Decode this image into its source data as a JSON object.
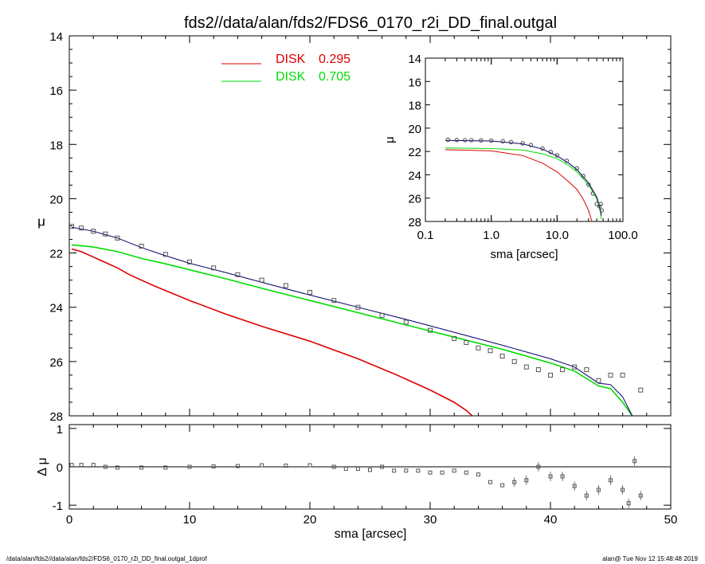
{
  "title": "fds2//data/alan/fds2/FDS6_0170_r2i_DD_final.outgal",
  "footer": {
    "left": "/data/alan/fds2//data/alan/fds2/FDS6_0170_r2i_DD_final.outgal_1dprof",
    "right": "alan@  Tue Nov 12 15:48:48 2019"
  },
  "colors": {
    "disk1": "#dd0000",
    "disk2": "#00dd00",
    "model": "#000066",
    "data": "#555555"
  },
  "legend": [
    {
      "name": "DISK",
      "value": "0.295",
      "color": "#dd0000"
    },
    {
      "name": "DISK",
      "value": "0.705",
      "color": "#00dd00"
    }
  ],
  "chart_data": [
    {
      "type": "line",
      "role": "main",
      "xlabel": "",
      "ylabel": "μ",
      "xlim": [
        0,
        50
      ],
      "ylim": [
        28,
        14
      ],
      "yticks": [
        "14",
        "16",
        "18",
        "20",
        "22",
        "24",
        "26",
        "28"
      ],
      "series": [
        {
          "name": "DISK 0.295",
          "color": "#dd0000",
          "points": [
            [
              0.2,
              21.85
            ],
            [
              1,
              21.95
            ],
            [
              2,
              22.15
            ],
            [
              3,
              22.35
            ],
            [
              4,
              22.55
            ],
            [
              5,
              22.8
            ],
            [
              7,
              23.2
            ],
            [
              10,
              23.75
            ],
            [
              13,
              24.25
            ],
            [
              16,
              24.7
            ],
            [
              20,
              25.25
            ],
            [
              24,
              25.9
            ],
            [
              27,
              26.45
            ],
            [
              30,
              27.05
            ],
            [
              32,
              27.5
            ],
            [
              33,
              27.8
            ],
            [
              33.5,
              28.0
            ]
          ]
        },
        {
          "name": "DISK 0.705",
          "color": "#00dd00",
          "points": [
            [
              0.2,
              21.7
            ],
            [
              2,
              21.78
            ],
            [
              4,
              21.95
            ],
            [
              6,
              22.2
            ],
            [
              8,
              22.4
            ],
            [
              10,
              22.62
            ],
            [
              13,
              22.95
            ],
            [
              16,
              23.3
            ],
            [
              20,
              23.75
            ],
            [
              24,
              24.2
            ],
            [
              28,
              24.65
            ],
            [
              32,
              25.1
            ],
            [
              36,
              25.55
            ],
            [
              40,
              26.05
            ],
            [
              42,
              26.35
            ],
            [
              44,
              26.9
            ],
            [
              45,
              27.0
            ],
            [
              46,
              27.5
            ],
            [
              46.8,
              28.0
            ]
          ]
        },
        {
          "name": "model",
          "color": "#000066",
          "points": [
            [
              0.2,
              21.05
            ],
            [
              2,
              21.2
            ],
            [
              4,
              21.45
            ],
            [
              6,
              21.8
            ],
            [
              8,
              22.1
            ],
            [
              10,
              22.38
            ],
            [
              13,
              22.72
            ],
            [
              16,
              23.08
            ],
            [
              20,
              23.55
            ],
            [
              24,
              24.0
            ],
            [
              28,
              24.45
            ],
            [
              32,
              24.92
            ],
            [
              36,
              25.4
            ],
            [
              40,
              25.9
            ],
            [
              42,
              26.2
            ],
            [
              44,
              26.8
            ],
            [
              45,
              26.85
            ],
            [
              46,
              27.3
            ],
            [
              46.8,
              28.0
            ]
          ]
        }
      ],
      "data_points": [
        [
          0.2,
          21.02
        ],
        [
          1,
          21.08
        ],
        [
          2,
          21.2
        ],
        [
          3,
          21.3
        ],
        [
          4,
          21.45
        ],
        [
          6,
          21.75
        ],
        [
          8,
          22.05
        ],
        [
          10,
          22.33
        ],
        [
          12,
          22.55
        ],
        [
          14,
          22.8
        ],
        [
          16,
          23.0
        ],
        [
          18,
          23.2
        ],
        [
          20,
          23.45
        ],
        [
          22,
          23.75
        ],
        [
          24,
          24.0
        ],
        [
          26,
          24.3
        ],
        [
          28,
          24.55
        ],
        [
          30,
          24.85
        ],
        [
          32,
          25.15
        ],
        [
          33,
          25.3
        ],
        [
          34,
          25.5
        ],
        [
          35,
          25.6
        ],
        [
          36,
          25.8
        ],
        [
          37,
          26.0
        ],
        [
          38,
          26.2
        ],
        [
          39,
          26.3
        ],
        [
          40,
          26.5
        ],
        [
          41,
          26.3
        ],
        [
          42,
          26.2
        ],
        [
          43,
          26.3
        ],
        [
          44,
          26.7
        ],
        [
          45,
          26.5
        ],
        [
          46,
          26.5
        ],
        [
          47.5,
          27.05
        ]
      ]
    },
    {
      "type": "scatter",
      "role": "residual",
      "xlabel": "sma [arcsec]",
      "ylabel": "Δ μ",
      "xlim": [
        0,
        50
      ],
      "ylim": [
        -1.1,
        1.1
      ],
      "xticks": [
        "0",
        "10",
        "20",
        "30",
        "40",
        "50"
      ],
      "yticks": [
        "1",
        "0",
        "-1"
      ],
      "points": [
        [
          0.2,
          0.05
        ],
        [
          1,
          0.05
        ],
        [
          2,
          0.05
        ],
        [
          3,
          0.0
        ],
        [
          4,
          -0.02
        ],
        [
          6,
          -0.02
        ],
        [
          8,
          -0.02
        ],
        [
          10,
          0.0
        ],
        [
          12,
          0.01
        ],
        [
          14,
          0.02
        ],
        [
          16,
          0.04
        ],
        [
          18,
          0.03
        ],
        [
          20,
          0.04
        ],
        [
          22,
          0.0
        ],
        [
          23,
          -0.05
        ],
        [
          24,
          -0.05
        ],
        [
          25,
          -0.08
        ],
        [
          26,
          0.0
        ],
        [
          27,
          -0.1
        ],
        [
          28,
          -0.1
        ],
        [
          29,
          -0.1
        ],
        [
          30,
          -0.15
        ],
        [
          31,
          -0.15
        ],
        [
          32,
          -0.1
        ],
        [
          33,
          -0.15
        ],
        [
          34,
          -0.2
        ],
        [
          35,
          -0.4
        ],
        [
          36,
          -0.48
        ],
        [
          37,
          -0.4
        ],
        [
          38,
          -0.35
        ],
        [
          39,
          0.0
        ],
        [
          40,
          -0.25
        ],
        [
          41,
          -0.25
        ],
        [
          42,
          -0.5
        ],
        [
          43,
          -0.75
        ],
        [
          44,
          -0.6
        ],
        [
          45,
          -0.35
        ],
        [
          46,
          -0.6
        ],
        [
          46.5,
          -0.95
        ],
        [
          47,
          0.15
        ],
        [
          47.5,
          -0.75
        ]
      ]
    },
    {
      "type": "line",
      "role": "inset",
      "xlabel": "sma [arcsec]",
      "ylabel": "μ",
      "xscale": "log",
      "xlim": [
        0.1,
        100
      ],
      "ylim": [
        28,
        14
      ],
      "xticks": [
        "0.1",
        "1.0",
        "10.0",
        "100.0"
      ],
      "yticks": [
        "14",
        "16",
        "18",
        "20",
        "22",
        "24",
        "26",
        "28"
      ],
      "series": [
        {
          "name": "DISK 0.295",
          "color": "#dd0000",
          "points": [
            [
              0.2,
              21.85
            ],
            [
              1,
              21.95
            ],
            [
              3,
              22.35
            ],
            [
              6,
              23.0
            ],
            [
              10,
              23.75
            ],
            [
              15,
              24.6
            ],
            [
              20,
              25.25
            ],
            [
              25,
              26.1
            ],
            [
              30,
              27.05
            ],
            [
              33,
              27.8
            ],
            [
              34,
              28.0
            ]
          ]
        },
        {
          "name": "DISK 0.705",
          "color": "#00dd00",
          "points": [
            [
              0.2,
              21.7
            ],
            [
              1,
              21.75
            ],
            [
              3,
              21.88
            ],
            [
              6,
              22.2
            ],
            [
              10,
              22.62
            ],
            [
              15,
              23.2
            ],
            [
              20,
              23.75
            ],
            [
              30,
              24.85
            ],
            [
              40,
              26.05
            ],
            [
              46,
              27.3
            ],
            [
              47,
              27.8
            ]
          ]
        },
        {
          "name": "model",
          "color": "#000066",
          "points": [
            [
              0.2,
              21.05
            ],
            [
              1,
              21.1
            ],
            [
              3,
              21.35
            ],
            [
              6,
              21.8
            ],
            [
              10,
              22.38
            ],
            [
              15,
              23.0
            ],
            [
              20,
              23.55
            ],
            [
              30,
              24.7
            ],
            [
              40,
              25.9
            ],
            [
              46,
              27.1
            ],
            [
              47,
              27.5
            ]
          ]
        }
      ],
      "data_points": [
        [
          0.22,
          21.0
        ],
        [
          0.3,
          21.02
        ],
        [
          0.4,
          21.03
        ],
        [
          0.5,
          21.03
        ],
        [
          0.7,
          21.05
        ],
        [
          1,
          21.07
        ],
        [
          1.5,
          21.12
        ],
        [
          2,
          21.2
        ],
        [
          3,
          21.3
        ],
        [
          4,
          21.45
        ],
        [
          6,
          21.75
        ],
        [
          8,
          22.05
        ],
        [
          10,
          22.33
        ],
        [
          14,
          22.8
        ],
        [
          20,
          23.45
        ],
        [
          25,
          24.1
        ],
        [
          30,
          24.85
        ],
        [
          35,
          25.6
        ],
        [
          40,
          26.5
        ],
        [
          44,
          26.7
        ],
        [
          46,
          26.5
        ],
        [
          47.5,
          27.05
        ]
      ]
    }
  ]
}
